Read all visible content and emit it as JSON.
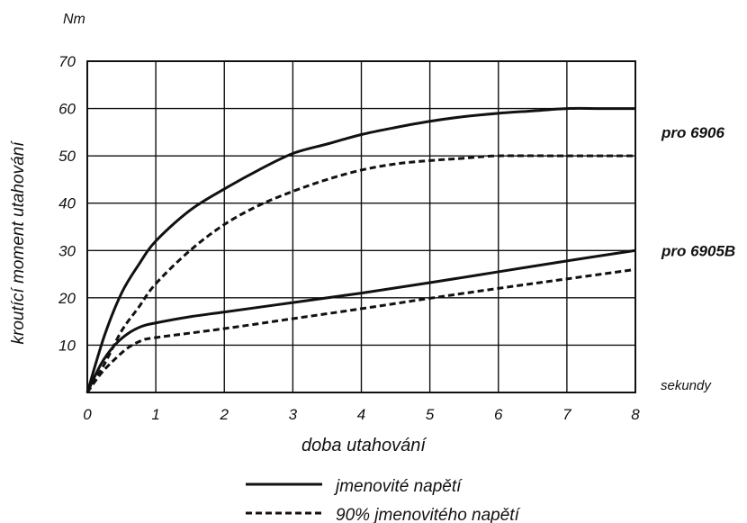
{
  "chart_data": {
    "type": "line",
    "unit_label": "Nm",
    "ylabel": "kroutící moment utahování",
    "xlabel": "doba utahování",
    "x_unit_label": "sekundy",
    "xlim": [
      0,
      8
    ],
    "ylim": [
      0,
      70
    ],
    "x_ticks": [
      "0",
      "1",
      "2",
      "3",
      "4",
      "5",
      "6",
      "7",
      "8"
    ],
    "y_ticks": [
      "10",
      "20",
      "30",
      "40",
      "50",
      "60",
      "70"
    ],
    "grid": true,
    "group_labels": [
      {
        "text": "pro 6906",
        "y": 55
      },
      {
        "text": "pro 6905B",
        "y": 30
      }
    ],
    "legend": {
      "position": "bottom",
      "entries": [
        {
          "label": "jmenovité napětí",
          "style": "solid"
        },
        {
          "label": "90% jmenovitého napětí",
          "style": "dashed"
        }
      ]
    },
    "series": [
      {
        "group": "pro 6906",
        "style": "solid",
        "points": [
          [
            0,
            0
          ],
          [
            0.25,
            12
          ],
          [
            0.5,
            21
          ],
          [
            0.75,
            27
          ],
          [
            1,
            32
          ],
          [
            1.5,
            38.5
          ],
          [
            2,
            43
          ],
          [
            2.5,
            47
          ],
          [
            3,
            50.5
          ],
          [
            3.5,
            52.5
          ],
          [
            4,
            54.5
          ],
          [
            4.5,
            56
          ],
          [
            5,
            57.3
          ],
          [
            5.5,
            58.3
          ],
          [
            6,
            59
          ],
          [
            6.5,
            59.5
          ],
          [
            7,
            60
          ],
          [
            7.5,
            60
          ],
          [
            8,
            60
          ]
        ]
      },
      {
        "group": "pro 6906",
        "style": "dashed",
        "points": [
          [
            0,
            0
          ],
          [
            0.25,
            6
          ],
          [
            0.5,
            13
          ],
          [
            0.75,
            18
          ],
          [
            1,
            23
          ],
          [
            1.5,
            30
          ],
          [
            2,
            35.5
          ],
          [
            2.5,
            39.5
          ],
          [
            3,
            42.5
          ],
          [
            3.5,
            45
          ],
          [
            4,
            47
          ],
          [
            4.5,
            48.3
          ],
          [
            5,
            49
          ],
          [
            5.5,
            49.5
          ],
          [
            6,
            50
          ],
          [
            7,
            50
          ],
          [
            8,
            50
          ]
        ]
      },
      {
        "group": "pro 6905B",
        "style": "solid",
        "points": [
          [
            0,
            0
          ],
          [
            0.2,
            6
          ],
          [
            0.4,
            10
          ],
          [
            0.6,
            12.5
          ],
          [
            0.8,
            14
          ],
          [
            1,
            14.7
          ],
          [
            1.5,
            16
          ],
          [
            2,
            17
          ],
          [
            3,
            19
          ],
          [
            4,
            21
          ],
          [
            5,
            23.2
          ],
          [
            6,
            25.5
          ],
          [
            7,
            27.8
          ],
          [
            8,
            30
          ]
        ]
      },
      {
        "group": "pro 6905B",
        "style": "dashed",
        "points": [
          [
            0,
            0
          ],
          [
            0.2,
            4
          ],
          [
            0.4,
            7
          ],
          [
            0.6,
            9.5
          ],
          [
            0.8,
            11
          ],
          [
            1,
            11.6
          ],
          [
            2,
            13.5
          ],
          [
            3,
            15.6
          ],
          [
            4,
            17.7
          ],
          [
            5,
            19.9
          ],
          [
            6,
            22
          ],
          [
            7,
            24
          ],
          [
            8,
            26
          ]
        ]
      }
    ]
  }
}
